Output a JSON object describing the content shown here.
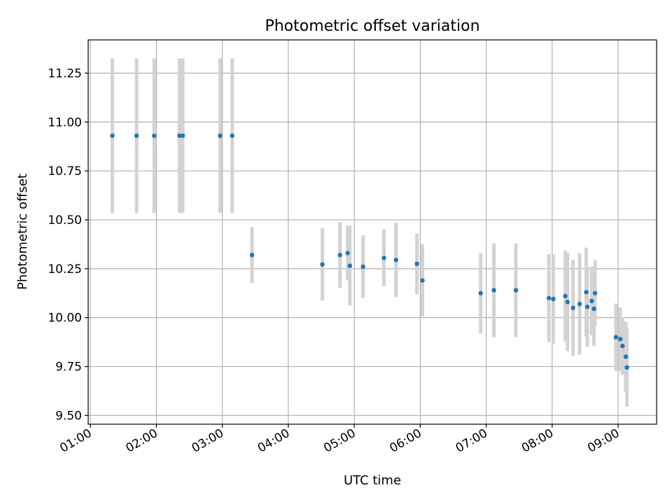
{
  "chart_data": {
    "type": "scatter",
    "title": "Photometric offset variation",
    "xlabel": "UTC time",
    "ylabel": "Photometric offset",
    "xlim": [
      "00:58",
      "09:35"
    ],
    "ylim": [
      9.455,
      11.42
    ],
    "grid": true,
    "x_ticks": [
      {
        "time": "01:00",
        "label": "01:00"
      },
      {
        "time": "02:00",
        "label": "02:00"
      },
      {
        "time": "03:00",
        "label": "03:00"
      },
      {
        "time": "04:00",
        "label": "04:00"
      },
      {
        "time": "05:00",
        "label": "05:00"
      },
      {
        "time": "06:00",
        "label": "06:00"
      },
      {
        "time": "07:00",
        "label": "07:00"
      },
      {
        "time": "08:00",
        "label": "08:00"
      },
      {
        "time": "09:00",
        "label": "09:00"
      }
    ],
    "y_ticks": [
      {
        "value": 9.5,
        "label": "9.50"
      },
      {
        "value": 9.75,
        "label": "9.75"
      },
      {
        "value": 10.0,
        "label": "10.00"
      },
      {
        "value": 10.25,
        "label": "10.25"
      },
      {
        "value": 10.5,
        "label": "10.50"
      },
      {
        "value": 10.75,
        "label": "10.75"
      },
      {
        "value": 11.0,
        "label": "11.00"
      },
      {
        "value": 11.25,
        "label": "11.25"
      }
    ],
    "colors": {
      "point": "#1f77b4",
      "errorbar": "#d3d3d3",
      "grid": "#b0b0b0"
    },
    "series": [
      {
        "points": [
          {
            "time": "01:20",
            "y": 10.93,
            "err": 0.395
          },
          {
            "time": "01:42",
            "y": 10.93,
            "err": 0.395
          },
          {
            "time": "01:58",
            "y": 10.93,
            "err": 0.395
          },
          {
            "time": "02:21",
            "y": 10.93,
            "err": 0.395
          },
          {
            "time": "02:24",
            "y": 10.93,
            "err": 0.395
          },
          {
            "time": "02:58",
            "y": 10.93,
            "err": 0.395
          },
          {
            "time": "03:09",
            "y": 10.93,
            "err": 0.395
          },
          {
            "time": "03:27",
            "y": 10.32,
            "err": 0.143
          },
          {
            "time": "04:31",
            "y": 10.272,
            "err": 0.185
          },
          {
            "time": "04:47",
            "y": 10.32,
            "err": 0.168
          },
          {
            "time": "04:54",
            "y": 10.33,
            "err": 0.14
          },
          {
            "time": "04:56",
            "y": 10.265,
            "err": 0.205
          },
          {
            "time": "05:08",
            "y": 10.26,
            "err": 0.16
          },
          {
            "time": "05:27",
            "y": 10.305,
            "err": 0.145
          },
          {
            "time": "05:38",
            "y": 10.295,
            "err": 0.19
          },
          {
            "time": "05:57",
            "y": 10.275,
            "err": 0.155
          },
          {
            "time": "06:02",
            "y": 10.19,
            "err": 0.185
          },
          {
            "time": "06:55",
            "y": 10.125,
            "err": 0.205
          },
          {
            "time": "07:07",
            "y": 10.14,
            "err": 0.24
          },
          {
            "time": "07:27",
            "y": 10.14,
            "err": 0.24
          },
          {
            "time": "07:57",
            "y": 10.1,
            "err": 0.225
          },
          {
            "time": "08:01",
            "y": 10.095,
            "err": 0.228
          },
          {
            "time": "08:12",
            "y": 10.11,
            "err": 0.232
          },
          {
            "time": "08:14",
            "y": 10.08,
            "err": 0.252
          },
          {
            "time": "08:19",
            "y": 10.05,
            "err": 0.245
          },
          {
            "time": "08:25",
            "y": 10.07,
            "err": 0.26
          },
          {
            "time": "08:31",
            "y": 10.13,
            "err": 0.228
          },
          {
            "time": "08:32",
            "y": 10.055,
            "err": 0.205
          },
          {
            "time": "08:36",
            "y": 10.085,
            "err": 0.176
          },
          {
            "time": "08:38",
            "y": 10.045,
            "err": 0.19
          },
          {
            "time": "08:39",
            "y": 10.125,
            "err": 0.168
          },
          {
            "time": "08:58",
            "y": 9.9,
            "err": 0.172
          },
          {
            "time": "09:02",
            "y": 9.89,
            "err": 0.162
          },
          {
            "time": "09:04",
            "y": 9.855,
            "err": 0.148
          },
          {
            "time": "09:07",
            "y": 9.8,
            "err": 0.18
          },
          {
            "time": "09:08",
            "y": 9.745,
            "err": 0.2
          }
        ]
      }
    ]
  }
}
